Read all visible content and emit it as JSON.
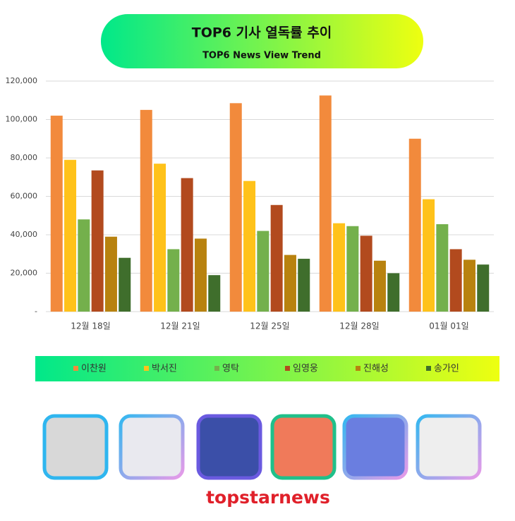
{
  "chart_data": {
    "type": "bar",
    "title": "TOP6 기사 열독률 추이",
    "subtitle": "TOP6  News View Trend",
    "categories": [
      "12월 18일",
      "12월 21일",
      "12월 25일",
      "12월 28일",
      "01월 01일"
    ],
    "series": [
      {
        "name": "이찬원",
        "color": "#f28a3c",
        "values": [
          102000,
          105000,
          108500,
          112500,
          90000
        ]
      },
      {
        "name": "박서진",
        "color": "#ffc21a",
        "values": [
          79000,
          77000,
          68000,
          46000,
          58500
        ]
      },
      {
        "name": "영탁",
        "color": "#74b04c",
        "values": [
          48000,
          32500,
          42000,
          44500,
          45500
        ]
      },
      {
        "name": "임영웅",
        "color": "#b24a1e",
        "values": [
          73500,
          69500,
          55500,
          39500,
          32500
        ]
      },
      {
        "name": "진해성",
        "color": "#b8820f",
        "values": [
          39000,
          38000,
          29500,
          26500,
          27000
        ]
      },
      {
        "name": "송가인",
        "color": "#3f6e2c",
        "values": [
          28000,
          19000,
          27500,
          20000,
          24500
        ]
      }
    ],
    "ylim": [
      0,
      120000
    ],
    "yticks": [
      {
        "value": 0,
        "label": "-"
      },
      {
        "value": 20000,
        "label": "20,000"
      },
      {
        "value": 40000,
        "label": "40,000"
      },
      {
        "value": 60000,
        "label": "60,000"
      },
      {
        "value": 80000,
        "label": "80,000"
      },
      {
        "value": 100000,
        "label": "100,000"
      },
      {
        "value": 120000,
        "label": "120,000"
      }
    ],
    "grid": true,
    "legend": "bottom"
  },
  "logo": "topstarnews"
}
